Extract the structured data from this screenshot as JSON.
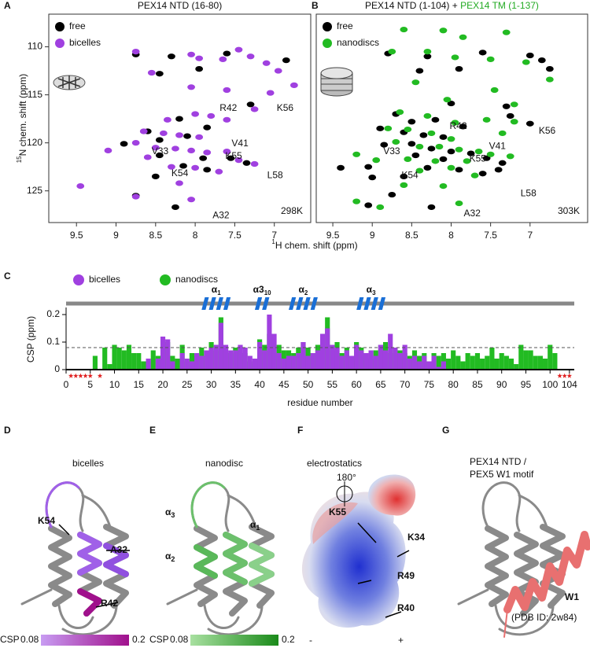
{
  "chart_data": [
    {
      "type": "scatter",
      "panel": "A",
      "title": "PEX14 NTD (16-80)",
      "ylabel_sup": "15",
      "ylabel": "N chem. shift (ppm)",
      "xlabel_sup": "1",
      "xlabel": "H chem. shift (ppm)",
      "temperature": "298K",
      "legend": "upper left",
      "xlim": [
        9.85,
        6.54
      ],
      "ylim": [
        128.3,
        106.6
      ],
      "xticks": [
        9.5,
        9,
        8.5,
        8,
        7.5,
        7
      ],
      "yticks": [
        110,
        115,
        120,
        125
      ],
      "series": [
        {
          "name": "free",
          "color": "#000000",
          "x": [
            8.75,
            8.3,
            7.95,
            8.45,
            7.6,
            6.85,
            7.3,
            8.2,
            7.85,
            8.6,
            8.1,
            8.9,
            8.45,
            7.55,
            7.35,
            8.15,
            7.85,
            8.75,
            8.25,
            8.5,
            7.9,
            8.45
          ],
          "y": [
            110.8,
            111.0,
            112.3,
            112.8,
            110.7,
            111.4,
            116.0,
            117.5,
            118.4,
            118.8,
            119.3,
            120.1,
            121.3,
            121.6,
            122.1,
            122.4,
            122.8,
            125.5,
            126.7,
            123.5,
            121.6,
            119.7
          ]
        },
        {
          "name": "bicelles",
          "color": "#a040e0",
          "x": [
            8.75,
            8.05,
            7.95,
            7.65,
            7.45,
            7.3,
            7.1,
            8.55,
            6.95,
            6.75,
            7.6,
            7.05,
            8.05,
            7.25,
            8.0,
            7.8,
            8.35,
            7.6,
            8.65,
            8.4,
            8.2,
            7.95,
            8.75,
            8.5,
            8.25,
            8.05,
            7.85,
            7.6,
            8.6,
            7.45,
            7.25,
            8.3,
            8.0,
            7.7,
            9.1,
            9.45,
            8.75,
            8.05,
            8.2
          ],
          "y": [
            110.5,
            110.8,
            111.2,
            111.3,
            110.3,
            111.0,
            111.7,
            112.7,
            112.5,
            114.0,
            114.5,
            114.8,
            114.2,
            116.5,
            117.0,
            117.2,
            117.6,
            117.6,
            118.8,
            119.0,
            119.2,
            119.4,
            120.0,
            120.5,
            120.6,
            120.8,
            121.0,
            120.9,
            121.5,
            121.8,
            122.2,
            122.5,
            122.6,
            123.0,
            120.8,
            124.5,
            125.6,
            125.9,
            124.2
          ]
        }
      ],
      "annotations": [
        {
          "text": "V33",
          "x": 8.55,
          "y": 120.9
        },
        {
          "text": "R42",
          "x": 7.69,
          "y": 116.4
        },
        {
          "text": "K56",
          "x": 6.97,
          "y": 116.4
        },
        {
          "text": "K54",
          "x": 8.3,
          "y": 123.2
        },
        {
          "text": "K55",
          "x": 7.62,
          "y": 121.4
        },
        {
          "text": "V41",
          "x": 7.54,
          "y": 120.1
        },
        {
          "text": "L58",
          "x": 7.09,
          "y": 123.4
        },
        {
          "text": "A32",
          "x": 7.78,
          "y": 127.6
        }
      ]
    },
    {
      "type": "scatter",
      "panel": "B",
      "title_parts": [
        {
          "text": "PEX14 NTD (1-104) + ",
          "color": "#111111"
        },
        {
          "text": "PEX14 TM (1-137)",
          "color": "#22aa22"
        }
      ],
      "temperature": "303K",
      "legend": "upper left",
      "xlim": [
        9.71,
        6.27
      ],
      "ylim": [
        128.3,
        106.6
      ],
      "xticks": [
        9.5,
        9,
        8.5,
        8,
        7.5,
        7
      ],
      "series": [
        {
          "name": "free",
          "color": "#000000",
          "x": [
            8.8,
            8.3,
            8.4,
            7.9,
            7.6,
            7.0,
            6.85,
            6.75,
            7.3,
            7.25,
            8.0,
            8.7,
            8.5,
            8.2,
            7.85,
            8.9,
            8.6,
            8.35,
            8.1,
            8.85,
            8.5,
            8.25,
            8.0,
            7.75,
            8.45,
            8.1,
            7.55,
            7.35,
            8.3,
            7.9,
            8.6,
            7.6,
            9.05,
            9.0,
            8.75,
            8.25,
            9.05,
            9.4,
            7.4,
            7.0
          ],
          "y": [
            110.7,
            111.0,
            112.5,
            112.3,
            110.6,
            110.9,
            111.4,
            112.3,
            116.2,
            117.2,
            115.9,
            117.0,
            117.8,
            117.6,
            118.3,
            118.5,
            118.9,
            119.2,
            119.4,
            120.2,
            120.1,
            120.6,
            120.9,
            121.1,
            121.3,
            121.7,
            121.6,
            122.1,
            122.6,
            122.8,
            123.5,
            123.2,
            122.5,
            123.6,
            125.4,
            126.7,
            126.5,
            122.6,
            122.8,
            118.0
          ]
        },
        {
          "name": "nanodiscs",
          "color": "#22bb22",
          "x": [
            8.6,
            8.1,
            7.85,
            7.3,
            8.75,
            8.3,
            7.95,
            7.5,
            7.05,
            6.75,
            8.45,
            7.45,
            7.2,
            8.05,
            8.65,
            8.3,
            7.95,
            7.55,
            8.8,
            8.55,
            8.25,
            8.0,
            8.7,
            8.4,
            8.15,
            7.9,
            7.65,
            8.55,
            8.2,
            7.8,
            7.5,
            7.25,
            8.4,
            8.0,
            7.7,
            8.95,
            9.2,
            8.6,
            8.1,
            7.9,
            9.2,
            8.9,
            7.2,
            7.35
          ],
          "y": [
            108.2,
            108.3,
            109.0,
            108.5,
            110.5,
            110.5,
            111.1,
            111.3,
            111.6,
            113.4,
            113.7,
            114.5,
            116.0,
            115.5,
            116.8,
            117.2,
            117.9,
            117.6,
            118.5,
            118.6,
            119.0,
            119.6,
            119.9,
            120.4,
            120.4,
            120.7,
            120.9,
            121.7,
            121.9,
            121.9,
            121.2,
            121.4,
            122.9,
            122.6,
            123.4,
            121.8,
            121.2,
            124.4,
            124.5,
            126.3,
            126.1,
            126.7,
            117.8,
            119.0
          ]
        }
      ],
      "annotations": [
        {
          "text": "V33",
          "x": 8.86,
          "y": 120.9
        },
        {
          "text": "R42",
          "x": 8.02,
          "y": 118.3
        },
        {
          "text": "K56",
          "x": 6.89,
          "y": 118.8
        },
        {
          "text": "K54",
          "x": 8.63,
          "y": 123.4
        },
        {
          "text": "K55",
          "x": 7.77,
          "y": 121.7
        },
        {
          "text": "V41",
          "x": 7.52,
          "y": 120.4
        },
        {
          "text": "L58",
          "x": 7.12,
          "y": 125.3
        },
        {
          "text": "A32",
          "x": 7.84,
          "y": 127.4
        }
      ]
    },
    {
      "type": "bar",
      "panel": "C",
      "ylabel": "CSP (ppm)",
      "xlabel": "residue number",
      "legend": "top",
      "xlim": [
        0,
        105
      ],
      "ylim": [
        0,
        0.22
      ],
      "xticks": [
        0,
        5,
        10,
        15,
        20,
        25,
        30,
        35,
        40,
        45,
        50,
        55,
        60,
        65,
        70,
        75,
        80,
        85,
        90,
        95,
        100,
        104
      ],
      "yticks": [
        0,
        0.1,
        0.2
      ],
      "threshold": 0.08,
      "unassigned": [
        1,
        2,
        3,
        4,
        5,
        7,
        102,
        103,
        104
      ],
      "unassigned_color": "#e02020",
      "helix_color": "#1a6fd6",
      "helices": [
        {
          "label": "α",
          "sub": "1",
          "start": 28,
          "end": 34
        },
        {
          "label": "α3",
          "sub": "10",
          "start": 39,
          "end": 42
        },
        {
          "label": "α",
          "sub": "2",
          "start": 46,
          "end": 52
        },
        {
          "label": "α",
          "sub": "3",
          "start": 60,
          "end": 66
        }
      ],
      "x": [
        1,
        2,
        3,
        4,
        5,
        6,
        7,
        8,
        9,
        10,
        11,
        12,
        13,
        14,
        15,
        16,
        17,
        18,
        19,
        20,
        21,
        22,
        23,
        24,
        25,
        26,
        27,
        28,
        29,
        30,
        31,
        32,
        33,
        34,
        35,
        36,
        37,
        38,
        39,
        40,
        41,
        42,
        43,
        44,
        45,
        46,
        47,
        48,
        49,
        50,
        51,
        52,
        53,
        54,
        55,
        56,
        57,
        58,
        59,
        60,
        61,
        62,
        63,
        64,
        65,
        66,
        67,
        68,
        69,
        70,
        71,
        72,
        73,
        74,
        75,
        76,
        77,
        78,
        79,
        80,
        81,
        82,
        83,
        84,
        85,
        86,
        87,
        88,
        89,
        90,
        91,
        92,
        93,
        94,
        95,
        96,
        97,
        98,
        99,
        100,
        101,
        102,
        103,
        104
      ],
      "series": [
        {
          "name": "nanodiscs",
          "color": "#22bb22",
          "values": [
            null,
            null,
            null,
            null,
            null,
            0.05,
            null,
            0.08,
            0.02,
            0.09,
            0.08,
            0.07,
            0.09,
            0.06,
            0.06,
            0.03,
            0.03,
            0.07,
            0.05,
            0.11,
            0.1,
            0.05,
            0.04,
            0.09,
            0.03,
            0.06,
            0.05,
            0.08,
            0.05,
            0.1,
            0.07,
            0.19,
            0.08,
            0.06,
            0.08,
            0.07,
            0.06,
            0.03,
            0.02,
            0.11,
            0.09,
            0.13,
            0.09,
            0.09,
            0.07,
            0.07,
            0.06,
            0.08,
            0.1,
            0.08,
            0.06,
            0.09,
            0.08,
            0.19,
            0.07,
            0.1,
            0.06,
            0.08,
            0.05,
            0.1,
            0.08,
            0.06,
            0.04,
            0.07,
            0.09,
            0.1,
            0.06,
            0.08,
            0.07,
            0.06,
            0.05,
            0.07,
            0.05,
            0.06,
            0.03,
            0.06,
            0.05,
            0.06,
            0.04,
            0.07,
            0.05,
            0.03,
            0.06,
            0.05,
            0.06,
            0.04,
            0.05,
            0.08,
            0.04,
            0.06,
            0.05,
            0.04,
            0.02,
            0.09,
            0.07,
            0.07,
            0.05,
            0.05,
            0.04,
            0.09,
            0.06,
            null,
            null,
            null
          ]
        },
        {
          "name": "bicelles",
          "color": "#a040e0",
          "values": [
            null,
            null,
            null,
            null,
            null,
            null,
            null,
            null,
            null,
            null,
            null,
            null,
            null,
            null,
            null,
            null,
            0.04,
            null,
            0.04,
            0.12,
            0.11,
            0.03,
            null,
            0.06,
            0.04,
            0.03,
            0.06,
            0.05,
            0.07,
            0.08,
            0.09,
            0.17,
            0.09,
            0.07,
            0.07,
            0.09,
            0.08,
            0.05,
            0.04,
            0.1,
            0.07,
            0.2,
            0.13,
            0.06,
            0.04,
            0.05,
            0.05,
            0.06,
            0.1,
            0.05,
            0.06,
            0.07,
            0.13,
            0.15,
            0.09,
            0.08,
            0.05,
            0.07,
            0.05,
            0.09,
            0.07,
            0.06,
            0.07,
            0.05,
            0.09,
            0.07,
            0.13,
            0.08,
            0.06,
            0.09,
            0.04,
            0.05,
            0.03,
            0.05,
            0.03,
            0.05,
            0.01,
            0.03,
            null,
            null,
            null,
            null,
            null,
            null,
            null,
            null,
            null,
            null,
            null,
            null,
            null,
            null,
            null,
            null,
            null,
            null,
            null,
            null,
            null,
            null,
            null,
            null,
            null,
            null
          ]
        }
      ]
    }
  ],
  "panels": [
    {
      "letter": "D",
      "title": "bicelles",
      "labels": [
        {
          "text": "K54"
        },
        {
          "text": "A32"
        },
        {
          "text": "R42"
        }
      ],
      "colorbar": {
        "label": "CSP",
        "min": 0.08,
        "max": 0.2,
        "colors": [
          "#c89cf2",
          "#a0108c"
        ]
      }
    },
    {
      "letter": "E",
      "title": "nanodisc",
      "labels": [
        {
          "text": "α",
          "sub": "3"
        },
        {
          "text": "α",
          "sub": "2"
        },
        {
          "text": "α",
          "sub": "1"
        }
      ],
      "colorbar": {
        "label": "CSP",
        "min": 0.08,
        "max": 0.2,
        "colors": [
          "#a8e0a0",
          "#1a8a1a"
        ]
      }
    },
    {
      "letter": "F",
      "title": "electrostatics",
      "labels": [
        {
          "text": "K55"
        },
        {
          "text": "K34"
        },
        {
          "text": "R49"
        },
        {
          "text": "R40"
        },
        {
          "text": "180°"
        },
        {
          "text": "-"
        },
        {
          "text": "+"
        }
      ]
    },
    {
      "letter": "G",
      "title_lines": [
        "PEX14 NTD /",
        "PEX5 W1 motif"
      ],
      "labels": [
        {
          "text": "W1",
          "color": "#e87070"
        },
        {
          "text": "(PDB ID: 2w84)"
        }
      ]
    }
  ]
}
